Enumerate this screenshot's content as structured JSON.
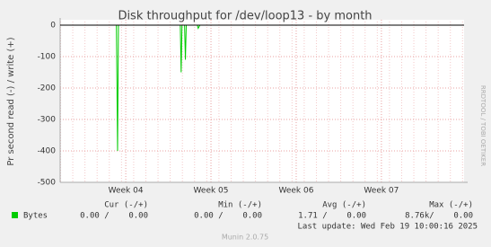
{
  "chart_data": {
    "type": "line",
    "title": "Disk throughput for /dev/loop13 - by month",
    "y_label": "Pr second read (-) / write (+)",
    "side_label": "RRDTOOL / TOBI OETIKER",
    "x": [
      0,
      0.66,
      0.674,
      0.684,
      1.41,
      1.42,
      1.43,
      1.46,
      1.47,
      1.48,
      1.61,
      1.62,
      1.64,
      3.2
    ],
    "series": [
      {
        "name": "Bytes",
        "color": "#00cc00",
        "values": [
          0,
          0,
          -400,
          0,
          0,
          -150,
          0,
          0,
          -110,
          0,
          0,
          -10,
          0,
          0
        ]
      }
    ],
    "xlim": [
      0,
      4.74
    ],
    "xticks": [
      {
        "value": 0.77,
        "label": "Week 04"
      },
      {
        "value": 1.77,
        "label": "Week 05"
      },
      {
        "value": 2.77,
        "label": "Week 06"
      },
      {
        "value": 3.77,
        "label": "Week 07"
      }
    ],
    "ylim": [
      -500,
      0
    ],
    "yticks": [
      0,
      -100,
      -200,
      -300,
      -400,
      -500
    ],
    "grid": true,
    "summary": {
      "headers": [
        "Cur (-/+)",
        "Min (-/+)",
        "Avg (-/+)",
        "Max (-/+)"
      ],
      "cells": [
        "0.00 /    0.00",
        "0.00 /    0.00",
        "1.71 /    0.00",
        "8.76k/    0.00"
      ]
    },
    "last_update": "Last update: Wed Feb 19 10:00:16 2025",
    "footer": "Munin 2.0.75"
  }
}
